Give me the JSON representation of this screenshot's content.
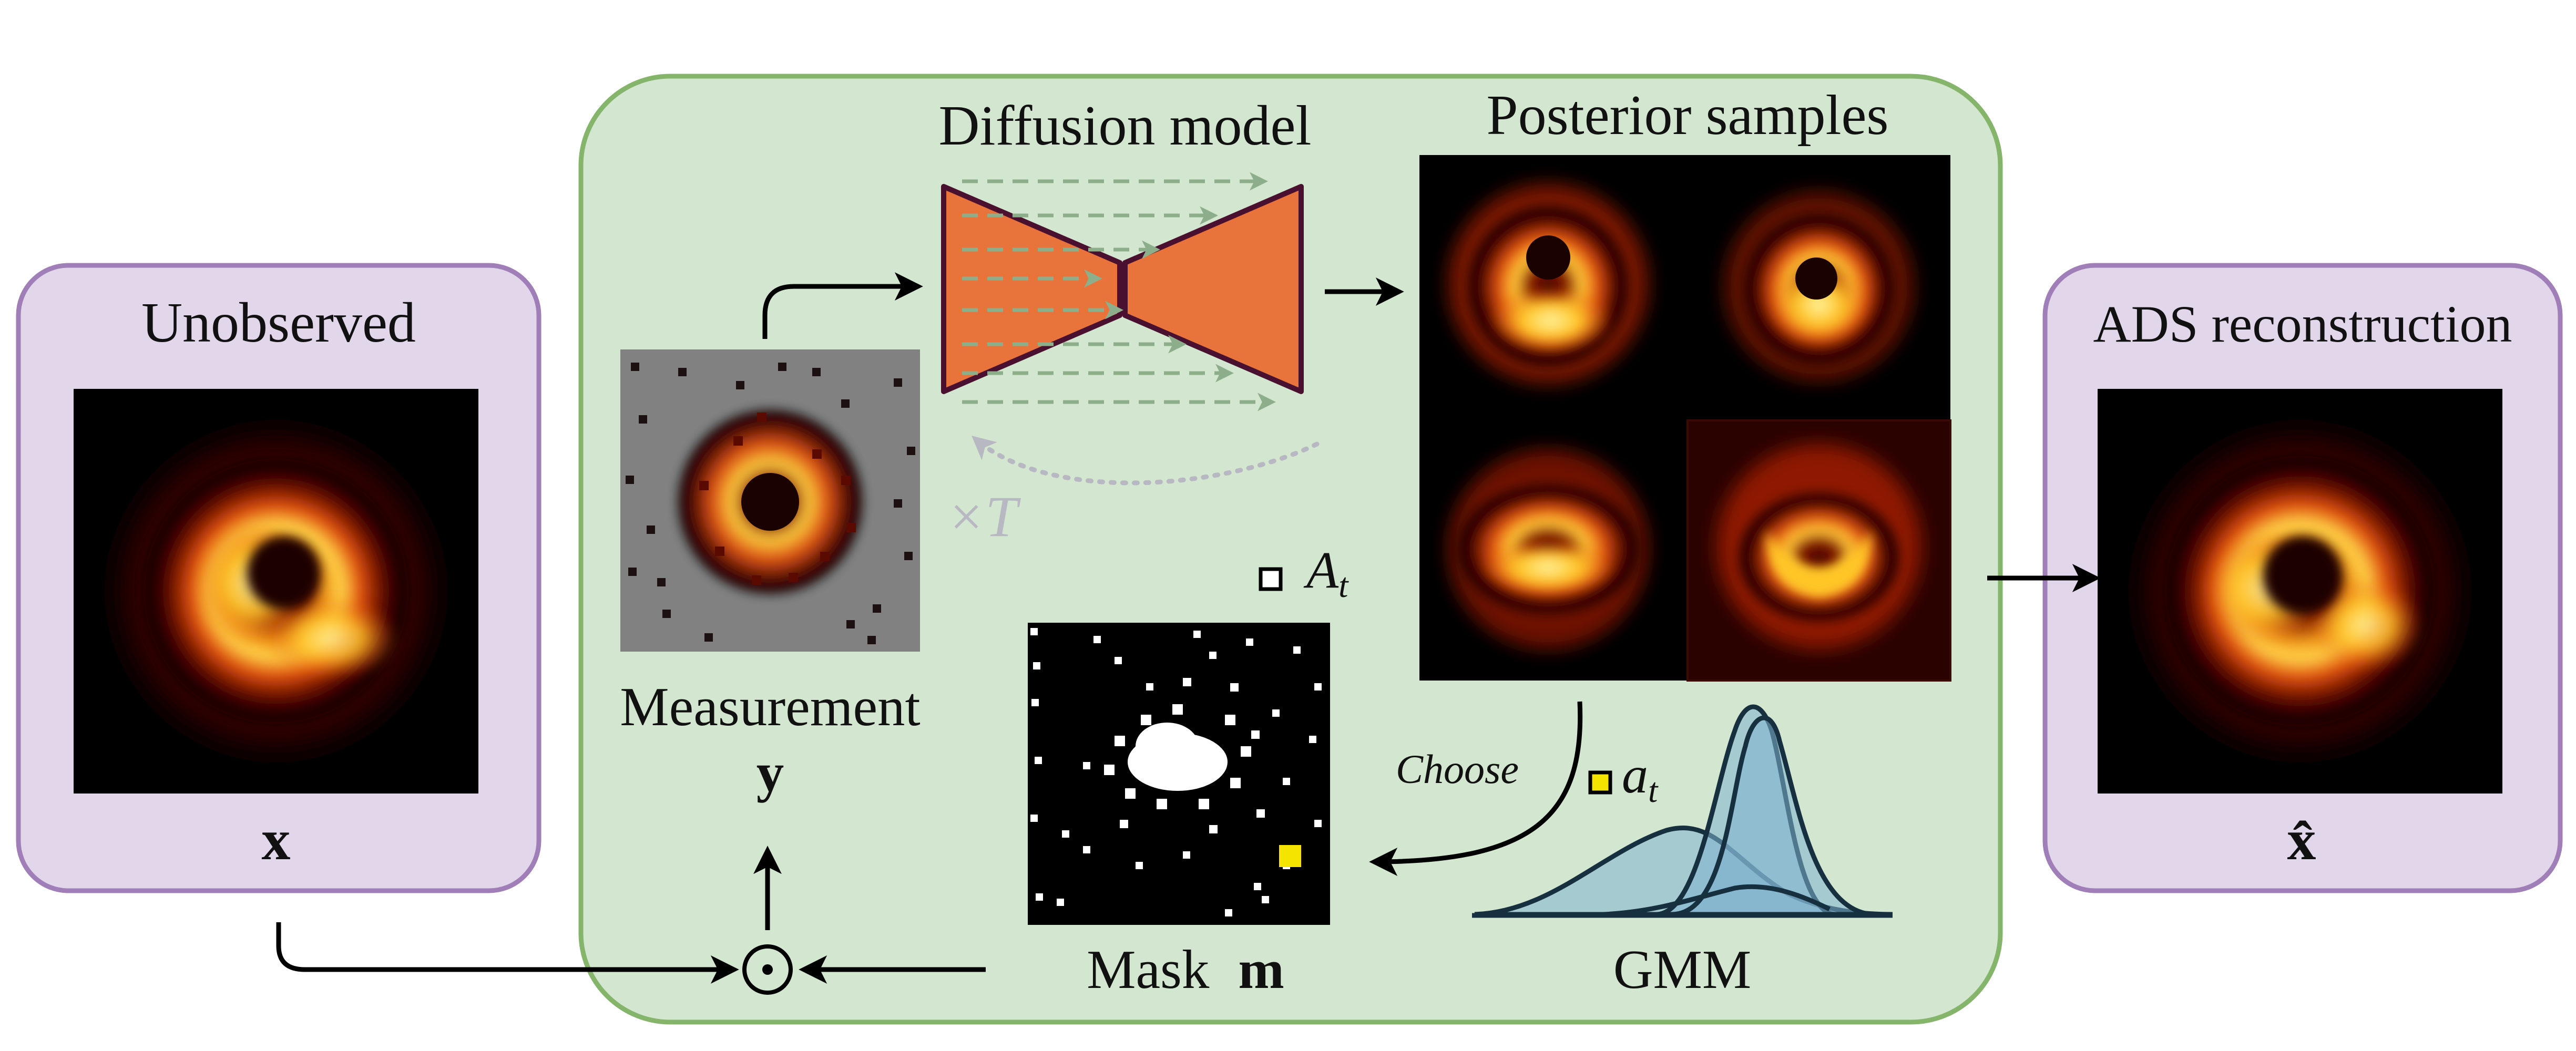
{
  "panels": {
    "left": {
      "title": "Unobserved",
      "symbol": "x"
    },
    "right": {
      "title": "ADS reconstruction",
      "symbol": "x̂"
    }
  },
  "center": {
    "diffusion_title": "Diffusion model",
    "posterior_title": "Posterior samples",
    "loop_label": "×T",
    "measurement_label": "Measurement",
    "measurement_symbol": "y",
    "mask_label": "Mask",
    "mask_symbol": "m",
    "legend_A": "A",
    "legend_A_sub": "t",
    "legend_a": "a",
    "legend_a_sub": "t",
    "choose_label": "Choose",
    "gmm_label": "GMM",
    "odot_symbol": "⊙"
  },
  "colors": {
    "panel_purple_fill": "#e2d6ea",
    "panel_purple_stroke": "#a07fb8",
    "center_green_fill": "#d3e6cf",
    "center_green_stroke": "#84b56a",
    "diffusion_orange": "#e8743b",
    "diffusion_outline": "#4a1030",
    "gmm_fill": "#7fb2cf",
    "gmm_stroke": "#16303f",
    "highlight_yellow": "#f5e400"
  }
}
